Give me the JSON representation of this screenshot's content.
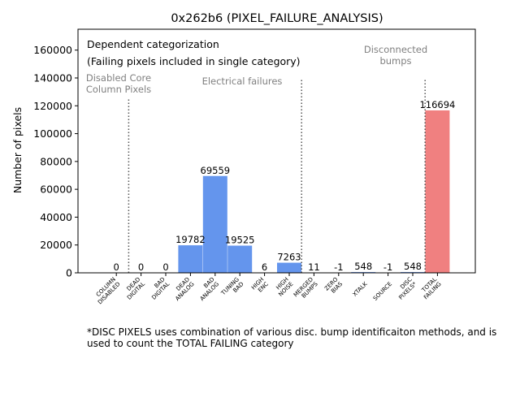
{
  "chart_data": {
    "type": "bar",
    "title": "0x262b6 (PIXEL_FAILURE_ANALYSIS)",
    "xlabel": "",
    "ylabel": "Number of pixels",
    "ylim": [
      0,
      175000
    ],
    "yticks": [
      0,
      20000,
      40000,
      60000,
      80000,
      100000,
      120000,
      140000,
      160000
    ],
    "grid": false,
    "categories": [
      [
        "COLUMN",
        "DISABLED"
      ],
      [
        "DEAD",
        "DIGITAL"
      ],
      [
        "BAD",
        "DIGITAL"
      ],
      [
        "DEAD",
        "ANALOG"
      ],
      [
        "BAD",
        "ANALOG"
      ],
      [
        "TUNING",
        "BAD"
      ],
      [
        "HIGH",
        "ENC"
      ],
      [
        "HIGH",
        "NOISE"
      ],
      [
        "MERGED",
        "BUMPS"
      ],
      [
        "ZERO",
        "BIAS"
      ],
      [
        "XTALK"
      ],
      [
        "SOURCE"
      ],
      [
        "DISC",
        "PIXELS*"
      ],
      [
        "TOTAL",
        "FAILING"
      ]
    ],
    "values": [
      0,
      0,
      0,
      19782,
      69559,
      19525,
      6,
      7263,
      11,
      -1,
      548,
      -1,
      548,
      116694
    ],
    "value_labels": [
      "0",
      "0",
      "0",
      "19782",
      "69559",
      "19525",
      "6",
      "7263",
      "11",
      "-1",
      "548",
      "-1",
      "548",
      "116694"
    ],
    "bar_colors": [
      "#6495ed",
      "#6495ed",
      "#6495ed",
      "#6495ed",
      "#6495ed",
      "#6495ed",
      "#6495ed",
      "#6495ed",
      "#6495ed",
      "#6495ed",
      "#6495ed",
      "#6495ed",
      "#6495ed",
      "#f08080"
    ],
    "legend_box": {
      "line1": "Dependent categorization",
      "line2": "(Failing pixels included in single category)"
    },
    "group_labels": [
      {
        "lines": [
          "Disabled Core",
          "Column Pixels"
        ]
      },
      {
        "lines": [
          "Electrical failures"
        ]
      },
      {
        "lines": [
          "Disconnected",
          "bumps"
        ]
      }
    ],
    "separators": [
      {
        "after_index": 0,
        "top_value": 125000
      },
      {
        "after_index": 7,
        "top_value": 140000
      },
      {
        "after_index": 12,
        "top_value": 140000
      }
    ],
    "footnote": {
      "line1": "*DISC PIXELS uses combination of various disc. bump identificaiton methods, and is",
      "line2": "used to count the TOTAL FAILING category"
    }
  }
}
